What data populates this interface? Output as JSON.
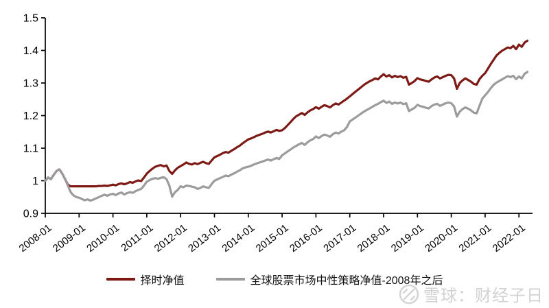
{
  "chart_data": {
    "type": "line",
    "title": "",
    "x_start": "2008-01",
    "x_end": "2022-04",
    "x_frequency": "monthly",
    "x_tick_labels": [
      "2008-01",
      "2009-01",
      "2010-01",
      "2011-01",
      "2012-01",
      "2013-01",
      "2014-01",
      "2015-01",
      "2016-01",
      "2017-01",
      "2018-01",
      "2019-01",
      "2020-01",
      "2021-01",
      "2022-01"
    ],
    "y_tick_labels": [
      "0.9",
      "1",
      "1.1",
      "1.2",
      "1.3",
      "1.4",
      "1.5"
    ],
    "ylim": [
      0.9,
      1.5
    ],
    "grid": false,
    "legend_position": "bottom-center",
    "axis_color": "#000000",
    "series": [
      {
        "name": "择时净值",
        "color": "#7E1A15",
        "values": [
          1.0,
          1.01,
          1.005,
          1.018,
          1.03,
          1.035,
          1.022,
          1.005,
          0.988,
          0.983,
          0.983,
          0.983,
          0.983,
          0.983,
          0.983,
          0.983,
          0.983,
          0.983,
          0.983,
          0.984,
          0.984,
          0.985,
          0.984,
          0.986,
          0.988,
          0.986,
          0.99,
          0.992,
          0.989,
          0.992,
          0.996,
          0.994,
          0.998,
          1.001,
          0.999,
          1.01,
          1.022,
          1.03,
          1.037,
          1.043,
          1.046,
          1.048,
          1.044,
          1.047,
          1.03,
          1.021,
          1.032,
          1.04,
          1.045,
          1.05,
          1.056,
          1.052,
          1.05,
          1.054,
          1.051,
          1.055,
          1.058,
          1.054,
          1.052,
          1.062,
          1.072,
          1.076,
          1.08,
          1.085,
          1.088,
          1.086,
          1.092,
          1.097,
          1.103,
          1.108,
          1.115,
          1.121,
          1.127,
          1.13,
          1.134,
          1.138,
          1.141,
          1.144,
          1.148,
          1.151,
          1.148,
          1.152,
          1.156,
          1.153,
          1.155,
          1.162,
          1.171,
          1.18,
          1.19,
          1.198,
          1.203,
          1.208,
          1.202,
          1.21,
          1.216,
          1.22,
          1.226,
          1.221,
          1.227,
          1.232,
          1.229,
          1.225,
          1.232,
          1.237,
          1.234,
          1.24,
          1.246,
          1.252,
          1.259,
          1.266,
          1.273,
          1.28,
          1.287,
          1.294,
          1.3,
          1.305,
          1.309,
          1.314,
          1.311,
          1.32,
          1.327,
          1.32,
          1.324,
          1.317,
          1.322,
          1.318,
          1.321,
          1.316,
          1.319,
          1.295,
          1.3,
          1.306,
          1.315,
          1.311,
          1.309,
          1.306,
          1.304,
          1.311,
          1.317,
          1.32,
          1.314,
          1.318,
          1.322,
          1.325,
          1.324,
          1.314,
          1.282,
          1.3,
          1.308,
          1.314,
          1.309,
          1.304,
          1.297,
          1.295,
          1.312,
          1.322,
          1.33,
          1.344,
          1.358,
          1.371,
          1.384,
          1.392,
          1.399,
          1.404,
          1.409,
          1.407,
          1.414,
          1.404,
          1.418,
          1.411,
          1.424,
          1.43
        ]
      },
      {
        "name": "全球股票市场中性策略净值-2008年之后",
        "color": "#9B9B9B",
        "values": [
          1.0,
          1.01,
          1.005,
          1.018,
          1.03,
          1.035,
          1.022,
          1.005,
          0.985,
          0.965,
          0.955,
          0.95,
          0.948,
          0.944,
          0.94,
          0.943,
          0.939,
          0.942,
          0.946,
          0.95,
          0.954,
          0.957,
          0.954,
          0.958,
          0.96,
          0.956,
          0.961,
          0.964,
          0.958,
          0.962,
          0.965,
          0.963,
          0.968,
          0.972,
          0.975,
          0.985,
          0.997,
          1.002,
          1.006,
          1.008,
          1.006,
          1.009,
          1.011,
          1.005,
          0.985,
          0.951,
          0.965,
          0.972,
          0.983,
          0.98,
          0.985,
          0.984,
          0.982,
          0.98,
          0.975,
          0.978,
          0.983,
          0.98,
          0.978,
          0.99,
          1.0,
          1.004,
          1.008,
          1.012,
          1.016,
          1.014,
          1.019,
          1.023,
          1.028,
          1.032,
          1.038,
          1.041,
          1.043,
          1.046,
          1.05,
          1.053,
          1.056,
          1.059,
          1.062,
          1.065,
          1.062,
          1.066,
          1.07,
          1.067,
          1.078,
          1.084,
          1.09,
          1.096,
          1.102,
          1.107,
          1.112,
          1.116,
          1.11,
          1.118,
          1.124,
          1.128,
          1.136,
          1.131,
          1.137,
          1.142,
          1.139,
          1.135,
          1.143,
          1.148,
          1.145,
          1.151,
          1.155,
          1.165,
          1.182,
          1.188,
          1.194,
          1.2,
          1.206,
          1.212,
          1.217,
          1.222,
          1.227,
          1.232,
          1.236,
          1.241,
          1.246,
          1.239,
          1.243,
          1.236,
          1.24,
          1.237,
          1.24,
          1.235,
          1.238,
          1.214,
          1.219,
          1.224,
          1.233,
          1.229,
          1.227,
          1.224,
          1.222,
          1.229,
          1.234,
          1.236,
          1.23,
          1.234,
          1.238,
          1.24,
          1.238,
          1.228,
          1.197,
          1.212,
          1.22,
          1.225,
          1.221,
          1.216,
          1.209,
          1.207,
          1.23,
          1.252,
          1.262,
          1.272,
          1.284,
          1.294,
          1.301,
          1.306,
          1.311,
          1.316,
          1.321,
          1.318,
          1.322,
          1.312,
          1.32,
          1.314,
          1.328,
          1.334
        ]
      }
    ]
  },
  "watermark": {
    "text": "雪球：财经子日",
    "color": "#D2D2D2"
  }
}
